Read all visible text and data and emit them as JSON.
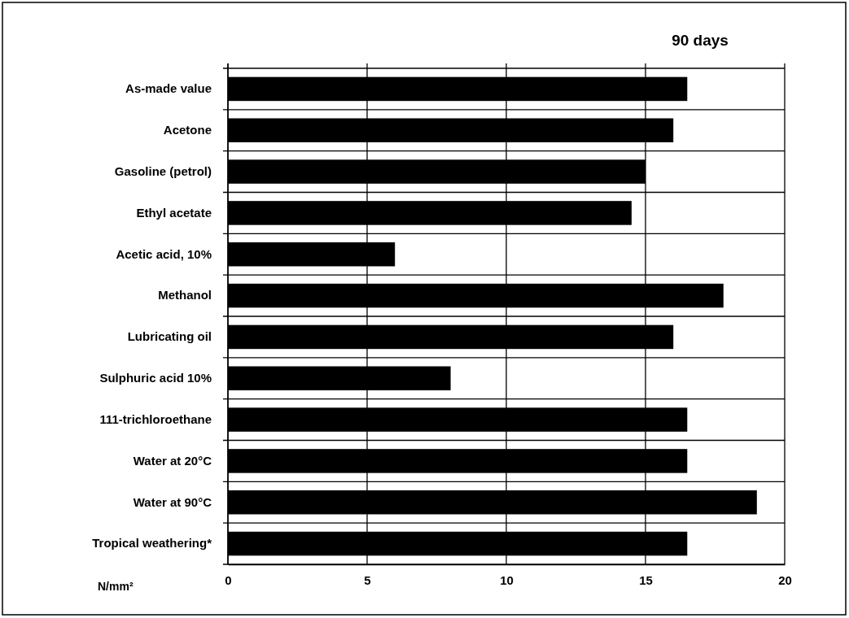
{
  "chart_data": {
    "type": "bar",
    "orientation": "horizontal",
    "title": "90 days",
    "xlabel": "N/mm²",
    "categories": [
      "As-made value",
      "Acetone",
      "Gasoline (petrol)",
      "Ethyl acetate",
      "Acetic acid, 10%",
      "Methanol",
      "Lubricating oil",
      "Sulphuric acid 10%",
      "111-trichloroethane",
      "Water at 20°C",
      "Water at 90°C",
      "Tropical weathering*"
    ],
    "values": [
      16.5,
      16.0,
      15.0,
      14.5,
      6.0,
      17.8,
      16.0,
      8.0,
      16.5,
      16.5,
      19.0,
      16.5
    ],
    "color": "#000000",
    "xlim": [
      0,
      20
    ],
    "xticks": [
      0,
      5,
      10,
      15,
      20
    ],
    "grid": true
  }
}
